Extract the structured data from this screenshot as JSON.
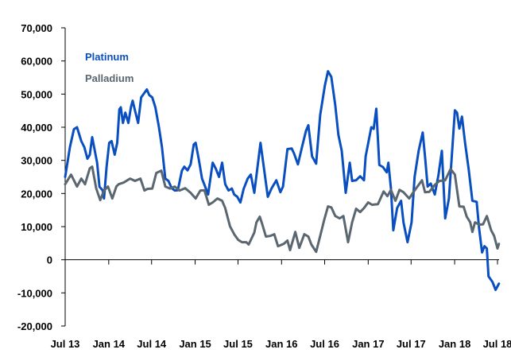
{
  "chart_data": {
    "type": "line",
    "title": "",
    "xlabel": "",
    "ylabel": "",
    "ylim": [
      -20000,
      70000
    ],
    "xlim": [
      "2013-07-01",
      "2018-07-01"
    ],
    "grid": false,
    "legend_placement": "top-left",
    "y_ticks": [
      "-20,000",
      "-10,000",
      "0",
      "10,000",
      "20,000",
      "30,000",
      "40,000",
      "50,000",
      "60,000",
      "70,000"
    ],
    "y_tick_values": [
      -20000,
      -10000,
      0,
      10000,
      20000,
      30000,
      40000,
      50000,
      60000,
      70000
    ],
    "x_ticks": [
      "Jul 13",
      "Jan 14",
      "Jul 14",
      "Jan 15",
      "Jul 15",
      "Jan 16",
      "Jul 16",
      "Jan 17",
      "Jul 17",
      "Jan 18",
      "Jul 18"
    ],
    "x_tick_values": [
      "2013-07-01",
      "2014-01-01",
      "2014-07-01",
      "2015-01-01",
      "2015-07-01",
      "2016-01-01",
      "2016-07-01",
      "2017-01-01",
      "2017-07-01",
      "2018-01-01",
      "2018-07-01"
    ],
    "series": [
      {
        "name": "Platinum",
        "color": "#0a4fc0",
        "points": [
          [
            "2013-07-01",
            25000
          ],
          [
            "2013-07-21",
            34000
          ],
          [
            "2013-08-07",
            39400
          ],
          [
            "2013-08-20",
            40000
          ],
          [
            "2013-09-07",
            35800
          ],
          [
            "2013-09-20",
            34000
          ],
          [
            "2013-10-03",
            30500
          ],
          [
            "2013-10-13",
            31700
          ],
          [
            "2013-10-23",
            37000
          ],
          [
            "2013-11-13",
            29300
          ],
          [
            "2013-11-23",
            22000
          ],
          [
            "2013-12-06",
            21000
          ],
          [
            "2013-12-12",
            18500
          ],
          [
            "2013-12-23",
            28000
          ],
          [
            "2014-01-03",
            35300
          ],
          [
            "2014-01-13",
            35800
          ],
          [
            "2014-01-26",
            31700
          ],
          [
            "2014-02-06",
            35300
          ],
          [
            "2014-02-15",
            45400
          ],
          [
            "2014-02-21",
            46000
          ],
          [
            "2014-03-02",
            41300
          ],
          [
            "2014-03-12",
            44400
          ],
          [
            "2014-03-25",
            41300
          ],
          [
            "2014-04-05",
            46100
          ],
          [
            "2014-04-12",
            48000
          ],
          [
            "2014-04-22",
            45000
          ],
          [
            "2014-05-05",
            41300
          ],
          [
            "2014-05-18",
            49000
          ],
          [
            "2014-06-11",
            51400
          ],
          [
            "2014-06-21",
            49700
          ],
          [
            "2014-07-04",
            49000
          ],
          [
            "2014-07-17",
            46000
          ],
          [
            "2014-08-01",
            40000
          ],
          [
            "2014-08-14",
            34000
          ],
          [
            "2014-08-28",
            24500
          ],
          [
            "2014-09-10",
            23800
          ],
          [
            "2014-09-24",
            21600
          ],
          [
            "2014-10-07",
            20900
          ],
          [
            "2014-10-20",
            21000
          ],
          [
            "2014-11-06",
            26900
          ],
          [
            "2014-11-16",
            28100
          ],
          [
            "2014-11-30",
            27000
          ],
          [
            "2014-12-13",
            28800
          ],
          [
            "2014-12-26",
            34800
          ],
          [
            "2015-01-03",
            35300
          ],
          [
            "2015-01-16",
            30500
          ],
          [
            "2015-01-30",
            24500
          ],
          [
            "2015-02-12",
            22100
          ],
          [
            "2015-02-25",
            19700
          ],
          [
            "2015-03-16",
            29300
          ],
          [
            "2015-03-29",
            27500
          ],
          [
            "2015-04-12",
            25000
          ],
          [
            "2015-04-25",
            29300
          ],
          [
            "2015-05-08",
            22800
          ],
          [
            "2015-05-22",
            20900
          ],
          [
            "2015-06-05",
            21500
          ],
          [
            "2015-06-15",
            19700
          ],
          [
            "2015-06-28",
            19000
          ],
          [
            "2015-07-11",
            17300
          ],
          [
            "2015-07-25",
            21400
          ],
          [
            "2015-08-11",
            24500
          ],
          [
            "2015-08-24",
            25700
          ],
          [
            "2015-09-08",
            20200
          ],
          [
            "2015-10-04",
            35300
          ],
          [
            "2015-11-04",
            19000
          ],
          [
            "2015-11-20",
            21600
          ],
          [
            "2015-12-10",
            24000
          ],
          [
            "2015-12-27",
            20400
          ],
          [
            "2016-01-07",
            22100
          ],
          [
            "2016-01-26",
            33400
          ],
          [
            "2016-02-13",
            33600
          ],
          [
            "2016-02-23",
            32000
          ],
          [
            "2016-03-10",
            28800
          ],
          [
            "2016-03-26",
            33600
          ],
          [
            "2016-04-13",
            38900
          ],
          [
            "2016-04-23",
            40600
          ],
          [
            "2016-05-09",
            31200
          ],
          [
            "2016-05-26",
            29000
          ],
          [
            "2016-06-12",
            43700
          ],
          [
            "2016-07-02",
            52600
          ],
          [
            "2016-07-15",
            56900
          ],
          [
            "2016-07-29",
            55200
          ],
          [
            "2016-08-15",
            46600
          ],
          [
            "2016-08-28",
            37700
          ],
          [
            "2016-09-11",
            32900
          ],
          [
            "2016-09-28",
            20200
          ],
          [
            "2016-10-15",
            29300
          ],
          [
            "2016-10-25",
            23800
          ],
          [
            "2016-11-11",
            24000
          ],
          [
            "2016-11-28",
            25200
          ],
          [
            "2016-12-14",
            24000
          ],
          [
            "2016-12-21",
            31200
          ],
          [
            "2017-01-14",
            40000
          ],
          [
            "2017-01-24",
            39500
          ],
          [
            "2017-02-04",
            45600
          ],
          [
            "2017-02-17",
            28600
          ],
          [
            "2017-03-04",
            28000
          ],
          [
            "2017-03-20",
            26400
          ],
          [
            "2017-03-27",
            29300
          ],
          [
            "2017-04-07",
            21600
          ],
          [
            "2017-04-17",
            8900
          ],
          [
            "2017-05-03",
            15600
          ],
          [
            "2017-05-20",
            17800
          ],
          [
            "2017-05-30",
            11300
          ],
          [
            "2017-06-16",
            5300
          ],
          [
            "2017-07-03",
            11300
          ],
          [
            "2017-07-16",
            25000
          ],
          [
            "2017-08-02",
            32900
          ],
          [
            "2017-08-19",
            38400
          ],
          [
            "2017-08-29",
            31200
          ],
          [
            "2017-09-09",
            22100
          ],
          [
            "2017-09-22",
            23000
          ],
          [
            "2017-10-09",
            19700
          ],
          [
            "2017-10-25",
            25700
          ],
          [
            "2017-11-08",
            32900
          ],
          [
            "2017-11-22",
            12500
          ],
          [
            "2017-12-08",
            18500
          ],
          [
            "2018-01-02",
            45100
          ],
          [
            "2018-01-11",
            44400
          ],
          [
            "2018-01-21",
            39600
          ],
          [
            "2018-02-01",
            43200
          ],
          [
            "2018-02-14",
            35300
          ],
          [
            "2018-03-01",
            27400
          ],
          [
            "2018-03-17",
            17800
          ],
          [
            "2018-04-04",
            17500
          ],
          [
            "2018-04-14",
            9600
          ],
          [
            "2018-04-27",
            2200
          ],
          [
            "2018-05-07",
            4100
          ],
          [
            "2018-05-17",
            3400
          ],
          [
            "2018-05-24",
            -5000
          ],
          [
            "2018-06-10",
            -6700
          ],
          [
            "2018-06-23",
            -9100
          ],
          [
            "2018-07-07",
            -7200
          ]
        ]
      },
      {
        "name": "Palladium",
        "color": "#5a6670",
        "points": [
          [
            "2013-07-01",
            22800
          ],
          [
            "2013-07-26",
            25700
          ],
          [
            "2013-08-20",
            22100
          ],
          [
            "2013-09-07",
            24500
          ],
          [
            "2013-09-23",
            22800
          ],
          [
            "2013-10-13",
            27600
          ],
          [
            "2013-10-23",
            28100
          ],
          [
            "2013-11-09",
            21600
          ],
          [
            "2013-11-26",
            18000
          ],
          [
            "2013-12-12",
            20900
          ],
          [
            "2013-12-29",
            22100
          ],
          [
            "2014-01-16",
            18500
          ],
          [
            "2014-02-02",
            22100
          ],
          [
            "2014-02-12",
            22800
          ],
          [
            "2014-03-05",
            23300
          ],
          [
            "2014-04-01",
            24500
          ],
          [
            "2014-04-22",
            23800
          ],
          [
            "2014-05-15",
            24500
          ],
          [
            "2014-06-01",
            20900
          ],
          [
            "2014-06-14",
            21400
          ],
          [
            "2014-07-04",
            21500
          ],
          [
            "2014-07-21",
            26200
          ],
          [
            "2014-08-11",
            26900
          ],
          [
            "2014-08-28",
            22100
          ],
          [
            "2014-09-17",
            21500
          ],
          [
            "2014-10-07",
            22100
          ],
          [
            "2014-10-27",
            20900
          ],
          [
            "2014-11-20",
            21600
          ],
          [
            "2014-12-13",
            20200
          ],
          [
            "2015-01-03",
            18500
          ],
          [
            "2015-01-23",
            20900
          ],
          [
            "2015-02-09",
            21000
          ],
          [
            "2015-02-28",
            16600
          ],
          [
            "2015-03-16",
            17300
          ],
          [
            "2015-04-05",
            18500
          ],
          [
            "2015-04-25",
            17800
          ],
          [
            "2015-05-08",
            15600
          ],
          [
            "2015-05-28",
            10100
          ],
          [
            "2015-06-15",
            7700
          ],
          [
            "2015-07-02",
            6000
          ],
          [
            "2015-07-18",
            5300
          ],
          [
            "2015-08-05",
            5300
          ],
          [
            "2015-08-15",
            4600
          ],
          [
            "2015-09-08",
            8200
          ],
          [
            "2015-09-17",
            11300
          ],
          [
            "2015-10-01",
            13000
          ],
          [
            "2015-10-11",
            10800
          ],
          [
            "2015-10-27",
            7000
          ],
          [
            "2015-11-14",
            7200
          ],
          [
            "2015-12-01",
            7700
          ],
          [
            "2015-12-17",
            4100
          ],
          [
            "2016-01-10",
            4800
          ],
          [
            "2016-01-26",
            5800
          ],
          [
            "2016-02-06",
            2900
          ],
          [
            "2016-02-28",
            8400
          ],
          [
            "2016-03-16",
            3600
          ],
          [
            "2016-04-06",
            7700
          ],
          [
            "2016-04-23",
            7000
          ],
          [
            "2016-05-06",
            4600
          ],
          [
            "2016-05-26",
            2400
          ],
          [
            "2016-06-12",
            7200
          ],
          [
            "2016-06-29",
            12000
          ],
          [
            "2016-07-15",
            16100
          ],
          [
            "2016-07-29",
            15800
          ],
          [
            "2016-08-15",
            13200
          ],
          [
            "2016-09-02",
            12500
          ],
          [
            "2016-09-18",
            13200
          ],
          [
            "2016-10-08",
            5300
          ],
          [
            "2016-10-25",
            11300
          ],
          [
            "2016-11-11",
            15400
          ],
          [
            "2016-11-28",
            14400
          ],
          [
            "2016-12-14",
            15600
          ],
          [
            "2017-01-01",
            17300
          ],
          [
            "2017-01-17",
            16600
          ],
          [
            "2017-02-11",
            16800
          ],
          [
            "2017-03-07",
            20600
          ],
          [
            "2017-03-23",
            19200
          ],
          [
            "2017-04-07",
            21100
          ],
          [
            "2017-04-26",
            17800
          ],
          [
            "2017-05-13",
            21100
          ],
          [
            "2017-05-30",
            20400
          ],
          [
            "2017-06-23",
            18500
          ],
          [
            "2017-07-09",
            20200
          ],
          [
            "2017-08-02",
            22600
          ],
          [
            "2017-08-16",
            24000
          ],
          [
            "2017-08-29",
            20400
          ],
          [
            "2017-09-16",
            20500
          ],
          [
            "2017-10-09",
            22600
          ],
          [
            "2017-10-29",
            23800
          ],
          [
            "2017-11-22",
            24000
          ],
          [
            "2017-12-15",
            27400
          ],
          [
            "2018-01-02",
            25700
          ],
          [
            "2018-01-21",
            16100
          ],
          [
            "2018-02-08",
            16000
          ],
          [
            "2018-02-21",
            13000
          ],
          [
            "2018-03-08",
            11300
          ],
          [
            "2018-03-17",
            8400
          ],
          [
            "2018-03-28",
            11300
          ],
          [
            "2018-04-14",
            10600
          ],
          [
            "2018-05-01",
            10700
          ],
          [
            "2018-05-17",
            13200
          ],
          [
            "2018-06-04",
            8900
          ],
          [
            "2018-06-17",
            7200
          ],
          [
            "2018-07-01",
            3400
          ],
          [
            "2018-07-07",
            4800
          ]
        ]
      }
    ]
  }
}
